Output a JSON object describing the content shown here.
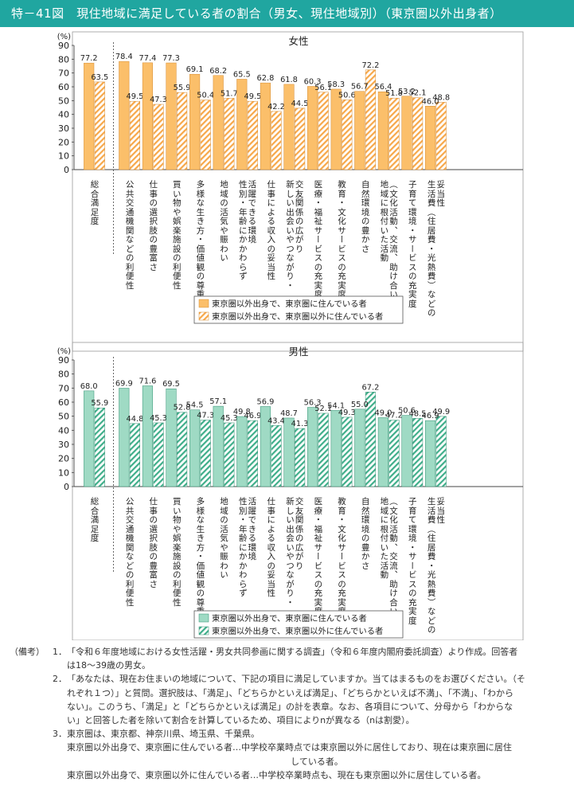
{
  "title": "特－41図　現住地域に満足している者の割合（男女、現住地域別）（東京圏以外出身者）",
  "colors": {
    "title_bg": "#20a6a0",
    "female_solid": "#fbbf6a",
    "female_stripe": "#f7a84a",
    "male_solid": "#9fdac4",
    "male_stripe": "#3fae8a",
    "panel_border": "#999999"
  },
  "chart_data": [
    {
      "type": "bar",
      "title": "女性",
      "ylabel": "(%)",
      "ylim": [
        0,
        90
      ],
      "yticks": [
        "0",
        "10",
        "20",
        "30",
        "40",
        "50",
        "60",
        "70",
        "80",
        "90"
      ],
      "categories": [
        [
          "総合満足度"
        ],
        [
          "公共交通機関などの利便性"
        ],
        [
          "仕事の選択肢の豊富さ"
        ],
        [
          "買い物や娯楽施設の利便性"
        ],
        [
          "多様な生き方・価値観の尊重"
        ],
        [
          "地域の活気や賑わい"
        ],
        [
          "性別・年齢にかかわらず",
          "活躍できる環境"
        ],
        [
          "仕事による収入の妥当性"
        ],
        [
          "新しい出会いやつながり・",
          "交友関係の広がり"
        ],
        [
          "医療・福祉サービスの充実度"
        ],
        [
          "教育・文化サービスの充実度"
        ],
        [
          "自然環境の豊かさ"
        ],
        [
          "地域に根付いた活動",
          "（文化活動、交流、助け合い）"
        ],
        [
          "子育て環境・サービスの充実度"
        ],
        [
          "生活費（住居費・光熱費）などの",
          "妥当性"
        ]
      ],
      "series": [
        {
          "name": "東京圏以外出身で、東京圏に住んでいる者",
          "values": [
            77.2,
            78.4,
            77.4,
            77.3,
            69.1,
            68.2,
            65.5,
            62.8,
            61.8,
            60.3,
            58.3,
            56.7,
            56.4,
            53.2,
            46.0
          ]
        },
        {
          "name": "東京圏以外出身で、東京圏以外に住んでいる者",
          "values": [
            63.5,
            49.5,
            47.3,
            55.9,
            50.4,
            51.7,
            49.5,
            42.2,
            44.5,
            56.1,
            50.6,
            72.2,
            51.8,
            52.1,
            48.8
          ]
        }
      ],
      "value_labels": [
        [
          "77.2",
          "78.4",
          "77.4",
          "77.3",
          "69.1",
          "68.2",
          "65.5",
          "62.8",
          "61.8",
          "60.3",
          "58.3",
          "56.7",
          "56.4",
          "53.2",
          "46.0"
        ],
        [
          "63.5",
          "49.5",
          "47.3",
          "55.9",
          "50.4",
          "51.7",
          "49.5",
          "42.2",
          "44.5",
          "56.1",
          "50.6",
          "72.2",
          "51.8",
          "52.1",
          "48.8"
        ]
      ]
    },
    {
      "type": "bar",
      "title": "男性",
      "ylabel": "(%)",
      "ylim": [
        0,
        90
      ],
      "yticks": [
        "0",
        "10",
        "20",
        "30",
        "40",
        "50",
        "60",
        "70",
        "80",
        "90"
      ],
      "categories": [
        [
          "総合満足度"
        ],
        [
          "公共交通機関などの利便性"
        ],
        [
          "仕事の選択肢の豊富さ"
        ],
        [
          "買い物や娯楽施設の利便性"
        ],
        [
          "多様な生き方・価値観の尊重"
        ],
        [
          "地域の活気や賑わい"
        ],
        [
          "性別・年齢にかかわらず",
          "活躍できる環境"
        ],
        [
          "仕事による収入の妥当性"
        ],
        [
          "新しい出会いやつながり・",
          "交友関係の広がり"
        ],
        [
          "医療・福祉サービスの充実度"
        ],
        [
          "教育・文化サービスの充実度"
        ],
        [
          "自然環境の豊かさ"
        ],
        [
          "地域に根付いた活動",
          "（文化活動、交流、助け合い）"
        ],
        [
          "子育て環境・サービスの充実度"
        ],
        [
          "生活費（住居費・光熱費）などの",
          "妥当性"
        ]
      ],
      "series": [
        {
          "name": "東京圏以外出身で、東京圏に住んでいる者",
          "values": [
            68.0,
            69.9,
            71.6,
            69.5,
            54.5,
            57.1,
            49.8,
            56.9,
            48.7,
            56.3,
            54.1,
            55.0,
            49.0,
            50.6,
            46.9
          ]
        },
        {
          "name": "東京圏以外出身で、東京圏以外に住んでいる者",
          "values": [
            55.9,
            44.8,
            45.3,
            52.8,
            47.3,
            45.3,
            46.9,
            43.4,
            41.3,
            52.1,
            49.3,
            67.2,
            47.2,
            48.5,
            49.9
          ]
        }
      ],
      "value_labels": [
        [
          "68.0",
          "69.9",
          "71.6",
          "69.5",
          "54.5",
          "57.1",
          "49.8",
          "56.9",
          "48.7",
          "56.3",
          "54.1",
          "55.0",
          "49.0",
          "50.6",
          "46.9"
        ],
        [
          "55.9",
          "44.8",
          "45.3",
          "52.8",
          "47.3",
          "45.3",
          "46.9",
          "43.4",
          "41.3",
          "52.1",
          "49.3",
          "67.2",
          "47.2",
          "48.5",
          "49.9"
        ]
      ]
    }
  ],
  "notes": {
    "head": "（備考）",
    "n1_num": "1．",
    "n1_a": "「令和６年度地域における女性活躍・男女共同参画に関する調査」（令和６年度内閣府委託調査）より作成。回答者",
    "n1_b": "は18～39歳の男女。",
    "n2_num": "2．",
    "n2_a": "「あなたは、現在お住まいの地域について、下記の項目に満足していますか。当てはまるものをお選びください。（そ",
    "n2_b": "れぞれ１つ）」と質問。選択肢は、「満足」、「どちらかといえば満足」、「どちらかといえば不満」、「不満」、「わから",
    "n2_c": "ない」。このうち、「満足」と「どちらかといえば満足」の計を表章。なお、各項目について、分母から「わからな",
    "n2_d": "い」と回答した者を除いて割合を計算しているため、項目によりnが異なる（nは割愛）。",
    "n3_num": "3．",
    "n3_a": "東京圏は、東京都、神奈川県、埼玉県、千葉県。",
    "n3_b": "東京圏以外出身で、東京圏に住んでいる者…中学校卒業時点では東京圏以外に居住しており、現在は東京圏に居住",
    "n3_c": "している者。",
    "n3_d": "東京圏以外出身で、東京圏以外に住んでいる者…中学校卒業時点も、現在も東京圏以外に居住している者。"
  }
}
